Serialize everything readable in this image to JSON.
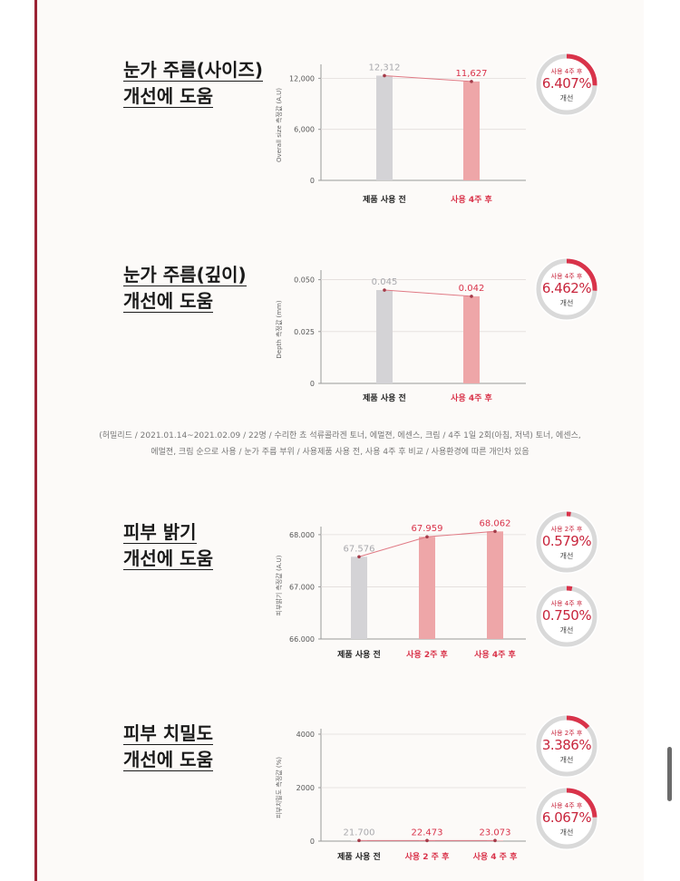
{
  "colors": {
    "accent": "#d9334a",
    "bar_gray": "#d4d3d6",
    "bar_pink": "#eea6a8",
    "frame": "#9b2335"
  },
  "sections": [
    {
      "headline_line1": "눈가 주름(사이즈)",
      "headline_line2": "개선에 도움",
      "ylabel": "Overall size 측정값 (A.U)",
      "badges": [
        {
          "caption": "사용 4주 후",
          "percent": "6.407%",
          "improve": "개선",
          "value": 6.407
        }
      ]
    },
    {
      "headline_line1": "눈가 주름(깊이)",
      "headline_line2": "개선에 도움",
      "ylabel": "Depth 측정값 (mm)",
      "badges": [
        {
          "caption": "사용 4주 후",
          "percent": "6.462%",
          "improve": "개선",
          "value": 6.462
        }
      ]
    },
    {
      "headline_line1": "피부 밝기",
      "headline_line2": "개선에 도움",
      "ylabel": "피부밝기 측정값 (A.U)",
      "badges": [
        {
          "caption": "사용 2주 후",
          "percent": "0.579%",
          "improve": "개선",
          "value": 0.579
        },
        {
          "caption": "사용 4주 후",
          "percent": "0.750%",
          "improve": "개선",
          "value": 0.75
        }
      ]
    },
    {
      "headline_line1": "피부 치밀도",
      "headline_line2": "개선에 도움",
      "ylabel": "피부치밀도 측정값 (%)",
      "badges": [
        {
          "caption": "사용 2주 후",
          "percent": "3.386%",
          "improve": "개선",
          "value": 3.386
        },
        {
          "caption": "사용 4주 후",
          "percent": "6.067%",
          "improve": "개선",
          "value": 6.067
        }
      ]
    }
  ],
  "footnote_line1": "(허밀리드 / 2021.01.14~2021.02.09 / 22명 / 수리한 쵸 석류콜라겐 토너, 에멀젼, 에센스, 크림 / 4주 1일 2회(아침, 저녁) 토너, 에센스,",
  "footnote_line2": "에멀젼, 크림 순으로 사용 / 눈가 주름 부위 / 사용제품 사용 전, 사용 4주 후 비교 / 사용환경에 따른 개인차 있음",
  "chart_data": [
    {
      "type": "bar",
      "categories": [
        "제품 사용 전",
        "사용 4주 후"
      ],
      "values": [
        12312,
        11627
      ],
      "value_labels": [
        "12,312",
        "11,627"
      ],
      "yticks": [
        0,
        6000,
        12000
      ],
      "ytick_labels": [
        "0",
        "6,000",
        "12,000"
      ],
      "ylim": [
        0,
        13000
      ],
      "ylabel": "Overall size 측정값 (A.U)"
    },
    {
      "type": "bar",
      "categories": [
        "제품 사용 전",
        "사용 4주 후"
      ],
      "values": [
        0.045,
        0.042
      ],
      "value_labels": [
        "0.045",
        "0.042"
      ],
      "yticks": [
        0,
        0.025,
        0.05
      ],
      "ytick_labels": [
        "0",
        "0.025",
        "0.050"
      ],
      "ylim": [
        0,
        0.052
      ],
      "ylabel": "Depth 측정값 (mm)"
    },
    {
      "type": "bar",
      "categories": [
        "제품 사용 전",
        "사용 2주 후",
        "사용 4주 후"
      ],
      "values": [
        67.576,
        67.959,
        68.062
      ],
      "value_labels": [
        "67.576",
        "67.959",
        "68.062"
      ],
      "yticks": [
        66,
        67,
        68
      ],
      "ytick_labels": [
        "66.000",
        "67.000",
        "68.000"
      ],
      "ylim": [
        66,
        68.05
      ],
      "ylabel": "피부밝기 측정값 (A.U)"
    },
    {
      "type": "bar",
      "categories": [
        "제품 사용 전",
        "사용 2 주 후",
        "사용 4 주 후"
      ],
      "values": [
        21.7,
        22.473,
        23.073
      ],
      "value_labels": [
        "21.700",
        "22.473",
        "23.073"
      ],
      "yticks": [
        0,
        2000,
        4000
      ],
      "ytick_labels": [
        "0",
        "2000",
        "4000"
      ],
      "ylim": [
        0,
        4000
      ],
      "ylabel": "피부치밀도 측정값 (%)"
    }
  ]
}
